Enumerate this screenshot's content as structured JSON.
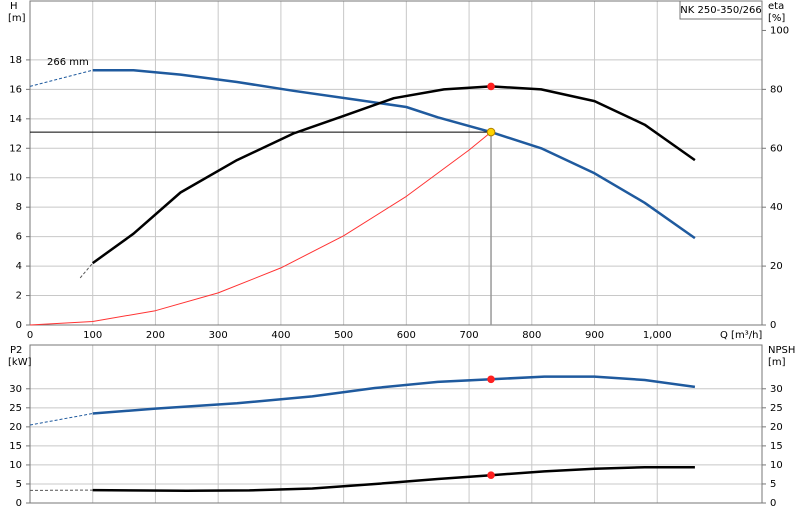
{
  "chart_data": [
    {
      "type": "line",
      "title": "NK 250-350/266",
      "ylabel": "H",
      "yunit": "[m]",
      "y2label": "eta",
      "y2unit": "[%]",
      "xlabel": "Q [m³/h]",
      "annotation": "266 mm",
      "xlim": [
        0,
        1167
      ],
      "xticks": [
        0,
        100,
        200,
        300,
        400,
        500,
        600,
        700,
        800,
        900,
        {
          "value": 1000,
          "label": "1,000"
        }
      ],
      "ylim": [
        0,
        22
      ],
      "yticks": [
        0,
        2,
        4,
        6,
        8,
        10,
        12,
        14,
        16,
        18
      ],
      "y2lim": [
        0,
        110
      ],
      "y2ticks": [
        0,
        20,
        40,
        60,
        80,
        100
      ],
      "grid": true,
      "series": [
        {
          "color": "#1f5a9e",
          "style": "dashed",
          "x": [
            0,
            100
          ],
          "values": [
            16.2,
            17.3
          ]
        },
        {
          "color": "#1f5a9e",
          "x": [
            100,
            165,
            240,
            330,
            420,
            520,
            600,
            650,
            735,
            815,
            900,
            980,
            1060
          ],
          "values": [
            17.3,
            17.3,
            17.0,
            16.5,
            15.9,
            15.3,
            14.8,
            14.1,
            13.1,
            12.0,
            10.3,
            8.3,
            5.9
          ]
        },
        {
          "color": "#555555",
          "style": "dashed",
          "axis": "y2",
          "x": [
            80,
            100
          ],
          "values": [
            16,
            21
          ]
        },
        {
          "color": "#000000",
          "axis": "y2",
          "x": [
            100,
            165,
            240,
            330,
            420,
            500,
            580,
            660,
            735,
            815,
            900,
            980,
            1060
          ],
          "values": [
            21,
            31,
            45,
            56,
            65,
            71,
            77,
            80,
            81,
            80,
            76,
            68,
            56
          ]
        },
        {
          "color": "#ff3333",
          "style": "thin",
          "x": [
            0,
            100,
            200,
            300,
            400,
            500,
            600,
            700,
            735
          ],
          "values": [
            0,
            0.24,
            0.97,
            2.18,
            3.88,
            6.06,
            8.73,
            11.88,
            13.1
          ]
        },
        {
          "kind": "point",
          "color": "#ffd400",
          "guides": true,
          "x": [
            735
          ],
          "values": [
            13.1
          ]
        },
        {
          "kind": "point",
          "color": "#ff2020",
          "axis": "y2",
          "x": [
            735
          ],
          "values": [
            81
          ]
        }
      ]
    },
    {
      "type": "line",
      "sharex": true,
      "ylabel": "P2",
      "yunit": "[kW]",
      "y2label": "NPSH",
      "y2unit": "[m]",
      "ylim": [
        0,
        41.5
      ],
      "yticks": [
        0,
        5,
        10,
        15,
        20,
        25,
        30
      ],
      "y2lim": [
        0,
        41.5
      ],
      "y2ticks": [
        0,
        5,
        10,
        15,
        20,
        25,
        30
      ],
      "grid": true,
      "series": [
        {
          "color": "#1f5a9e",
          "style": "dashed",
          "x": [
            0,
            100
          ],
          "values": [
            20.5,
            23.5
          ]
        },
        {
          "color": "#1f5a9e",
          "x": [
            100,
            200,
            330,
            450,
            550,
            650,
            735,
            820,
            900,
            980,
            1060
          ],
          "values": [
            23.5,
            24.8,
            26.2,
            28,
            30.2,
            31.8,
            32.5,
            33.2,
            33.2,
            32.3,
            30.5
          ]
        },
        {
          "color": "#555555",
          "style": "dashed",
          "axis": "y2",
          "x": [
            0,
            100
          ],
          "values": [
            3.3,
            3.4
          ]
        },
        {
          "color": "#000000",
          "axis": "y2",
          "x": [
            100,
            250,
            350,
            450,
            550,
            650,
            735,
            820,
            900,
            980,
            1060
          ],
          "values": [
            3.4,
            3.2,
            3.3,
            3.8,
            5,
            6.3,
            7.3,
            8.3,
            9,
            9.4,
            9.4
          ]
        },
        {
          "kind": "point",
          "color": "#ff2020",
          "x": [
            735
          ],
          "values": [
            32.5
          ]
        },
        {
          "kind": "point",
          "color": "#ff2020",
          "axis": "y2",
          "x": [
            735
          ],
          "values": [
            7.3
          ]
        }
      ]
    }
  ]
}
